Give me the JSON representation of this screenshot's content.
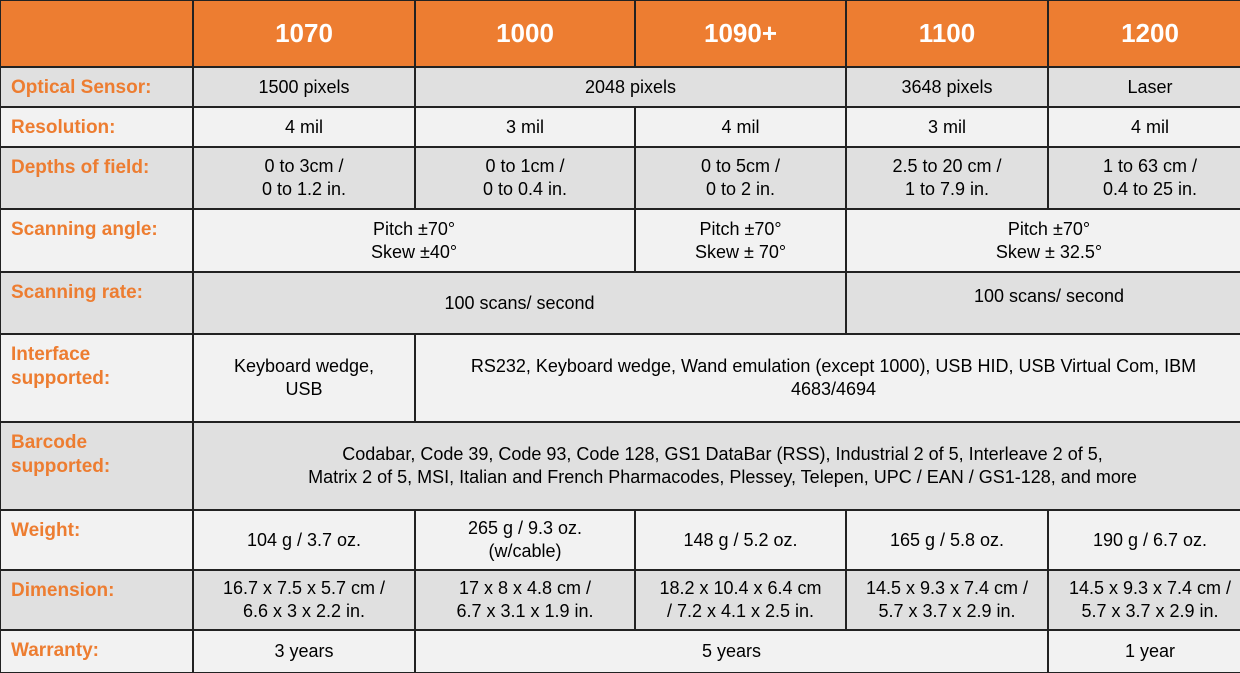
{
  "header": {
    "corner": "",
    "models": [
      "1070",
      "1000",
      "1090+",
      "1100",
      "1200"
    ]
  },
  "rows": [
    {
      "label": "Optical Sensor:",
      "cells": [
        "1500 pixels",
        "2048 pixels",
        "3648 pixels",
        "Laser"
      ]
    },
    {
      "label": "Resolution:",
      "cells": [
        "4 mil",
        "3 mil",
        "4 mil",
        "3 mil",
        "4 mil"
      ]
    },
    {
      "label": "Depths of field:",
      "cells": [
        "0 to 3cm /\n0 to 1.2 in.",
        "0 to 1cm /\n0 to 0.4 in.",
        "0 to 5cm /\n0 to 2 in.",
        "2.5 to 20 cm /\n1 to 7.9 in.",
        "1 to 63 cm /\n0.4 to 25 in."
      ]
    },
    {
      "label": "Scanning angle:",
      "cells": [
        "Pitch ±70°\nSkew ±40°",
        "Pitch ±70°\nSkew ± 70°",
        "Pitch ±70°\nSkew ± 32.5°"
      ]
    },
    {
      "label": "Scanning rate:",
      "cells": [
        "100 scans/ second",
        "100 scans/ second"
      ]
    },
    {
      "label": "Interface\nsupported:",
      "cells": [
        "Keyboard wedge,\nUSB",
        "RS232, Keyboard wedge, Wand emulation (except 1000), USB HID, USB Virtual Com, IBM\n4683/4694"
      ]
    },
    {
      "label": "Barcode\nsupported:",
      "cells": [
        "Codabar, Code 39, Code 93, Code 128, GS1 DataBar (RSS), Industrial 2 of 5, Interleave 2 of 5,\nMatrix 2 of 5, MSI, Italian and French Pharmacodes, Plessey, Telepen, UPC / EAN / GS1-128, and more"
      ]
    },
    {
      "label": "Weight:",
      "cells": [
        "104 g / 3.7 oz.",
        "265 g / 9.3 oz.\n(w/cable)",
        "148 g / 5.2 oz.",
        "165 g / 5.8 oz.",
        "190 g / 6.7 oz."
      ]
    },
    {
      "label": "Dimension:",
      "cells": [
        "16.7 x 7.5 x 5.7 cm /\n6.6 x 3 x 2.2 in.",
        "17 x 8 x 4.8 cm /\n6.7 x 3.1 x 1.9 in.",
        "18.2 x 10.4 x 6.4 cm\n/ 7.2 x 4.1 x 2.5 in.",
        "14.5 x 9.3 x 7.4 cm /\n5.7 x 3.7 x 2.9 in.",
        "14.5 x 9.3 x 7.4 cm /\n5.7 x 3.7 x 2.9 in."
      ]
    },
    {
      "label": "Warranty:",
      "cells": [
        "3 years",
        "5 years",
        "1 year"
      ]
    }
  ],
  "colors": {
    "accent": "#ED7D31",
    "row_dark": "#E0E0E0",
    "row_light": "#F2F2F2"
  }
}
